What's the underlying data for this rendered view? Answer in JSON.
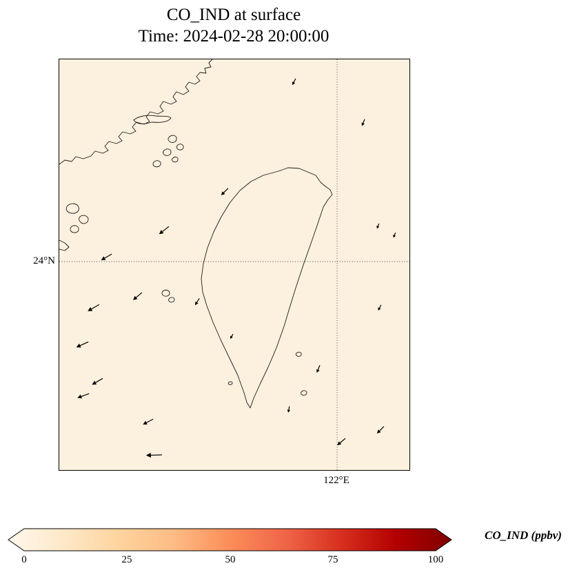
{
  "figure": {
    "title_line1": "CO_IND at surface",
    "title_line2": "Time: 2024-02-28 20:00:00"
  },
  "map": {
    "lat_tick": "24°N",
    "lon_tick": "122°E",
    "background_hex": "#fcf0de"
  },
  "colorbar": {
    "label": "CO_IND (ppbv)",
    "ticks": [
      "0",
      "25",
      "50",
      "75",
      "100"
    ],
    "colormap": [
      "#fff7ec",
      "#fee8c8",
      "#fdd49e",
      "#fdbb84",
      "#fc8d59",
      "#ef6548",
      "#d7301f",
      "#b30000",
      "#7f0000"
    ]
  },
  "chart_data": {
    "type": "heatmap",
    "title": "CO_IND at surface",
    "subtitle": "Time: 2024-02-28 20:00:00",
    "variable": "CO_IND",
    "level": "surface",
    "time": "2024-02-28 20:00:00",
    "region": "Taiwan and adjacent Taiwan Strait / western Pacific",
    "gridlines": {
      "lat_labels": [
        "24°N"
      ],
      "lon_labels": [
        "122°E"
      ],
      "style": "dotted"
    },
    "colorbar": {
      "label": "CO_IND (ppbv)",
      "min": 0,
      "max": 100,
      "ticks": [
        0,
        25,
        50,
        75,
        100
      ],
      "extend": "both",
      "colormap_name": "OrRd-like sequential (white-cream to dark red)"
    },
    "field": {
      "description": "Near-uniform very low CO_IND values across the whole domain",
      "approx_value_ppbv": 3
    },
    "wind_vectors": [
      {
        "x": 0.675,
        "y": 0.047,
        "angle": 118,
        "len": 6
      },
      {
        "x": 0.872,
        "y": 0.146,
        "angle": 112,
        "len": 6
      },
      {
        "x": 0.482,
        "y": 0.314,
        "angle": 135,
        "len": 9
      },
      {
        "x": 0.313,
        "y": 0.407,
        "angle": 142,
        "len": 12
      },
      {
        "x": 0.15,
        "y": 0.474,
        "angle": 150,
        "len": 12
      },
      {
        "x": 0.236,
        "y": 0.568,
        "angle": 140,
        "len": 11
      },
      {
        "x": 0.4,
        "y": 0.582,
        "angle": 122,
        "len": 7
      },
      {
        "x": 0.114,
        "y": 0.597,
        "angle": 150,
        "len": 13
      },
      {
        "x": 0.083,
        "y": 0.688,
        "angle": 156,
        "len": 13
      },
      {
        "x": 0.124,
        "y": 0.777,
        "angle": 150,
        "len": 12
      },
      {
        "x": 0.085,
        "y": 0.814,
        "angle": 160,
        "len": 12
      },
      {
        "x": 0.268,
        "y": 0.876,
        "angle": 152,
        "len": 11
      },
      {
        "x": 0.293,
        "y": 0.963,
        "angle": 178,
        "len": 16
      },
      {
        "x": 0.496,
        "y": 0.669,
        "angle": 120,
        "len": 4
      },
      {
        "x": 0.657,
        "y": 0.845,
        "angle": 100,
        "len": 5
      },
      {
        "x": 0.744,
        "y": 0.745,
        "angle": 112,
        "len": 7
      },
      {
        "x": 0.919,
        "y": 0.598,
        "angle": 118,
        "len": 5
      },
      {
        "x": 0.913,
        "y": 0.4,
        "angle": 112,
        "len": 4
      },
      {
        "x": 0.96,
        "y": 0.422,
        "angle": 112,
        "len": 4
      },
      {
        "x": 0.817,
        "y": 0.923,
        "angle": 140,
        "len": 10
      },
      {
        "x": 0.927,
        "y": 0.894,
        "angle": 135,
        "len": 9
      }
    ]
  }
}
